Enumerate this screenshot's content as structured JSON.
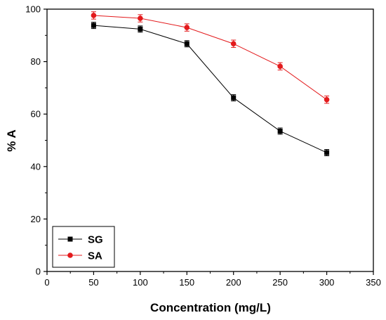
{
  "chart_data": {
    "type": "line",
    "title": "",
    "xlabel": "Concentration (mg/L)",
    "ylabel": "% A",
    "xlim": [
      0,
      350
    ],
    "ylim": [
      0,
      100
    ],
    "xticks": [
      0,
      50,
      100,
      150,
      200,
      250,
      300,
      350
    ],
    "yticks": [
      0,
      20,
      40,
      60,
      80,
      100
    ],
    "x": [
      50,
      100,
      150,
      200,
      250,
      300
    ],
    "grid": false,
    "legend_position": "bottom-left",
    "series": [
      {
        "name": "SG",
        "color": "#000000",
        "marker": "square",
        "values": [
          93.8,
          92.4,
          86.8,
          66.2,
          53.5,
          45.3
        ],
        "errors": [
          1.2,
          1.2,
          1.2,
          1.2,
          1.2,
          1.2
        ]
      },
      {
        "name": "SA",
        "color": "#e31a1c",
        "marker": "circle",
        "values": [
          97.6,
          96.5,
          93.0,
          86.8,
          78.2,
          65.5
        ],
        "errors": [
          1.4,
          1.4,
          1.4,
          1.4,
          1.4,
          1.4
        ]
      }
    ]
  }
}
